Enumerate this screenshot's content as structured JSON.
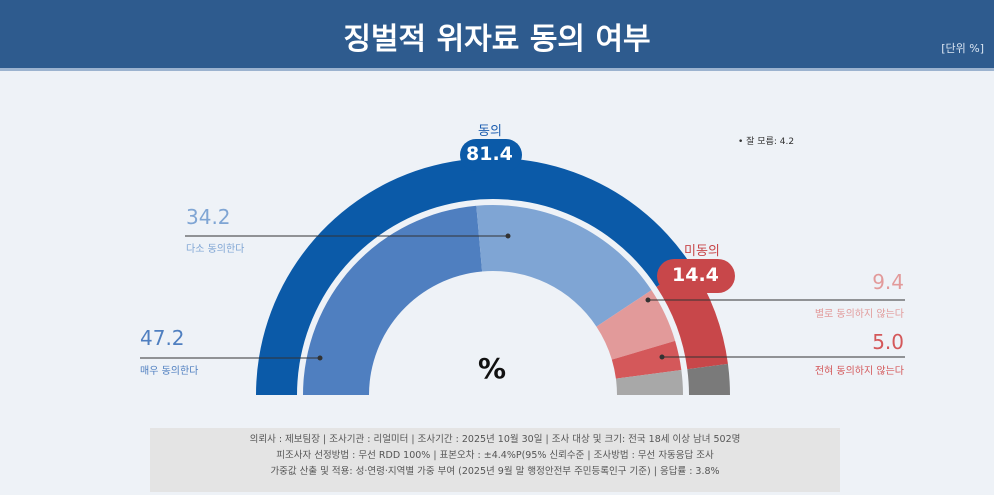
{
  "header": {
    "title": "징벌적 위자료 동의 여부",
    "unit": "[단위 %]"
  },
  "chart_data": {
    "type": "pie",
    "subtype": "semi-donut",
    "center_label": "%",
    "outer": [
      {
        "name": "동의",
        "value": 81.4,
        "color": "#0b5aa8"
      },
      {
        "name": "미동의",
        "value": 14.4,
        "color": "#c8474a"
      },
      {
        "name": "잘 모름",
        "value": 4.2,
        "color": "#7a7a7a"
      }
    ],
    "inner": [
      {
        "name": "매우 동의한다",
        "value": 47.2,
        "color": "#4f7fc0"
      },
      {
        "name": "다소 동의한다",
        "value": 34.2,
        "color": "#7fa5d4"
      },
      {
        "name": "별로 동의하지 않는다",
        "value": 9.4,
        "color": "#e29a9a"
      },
      {
        "name": "전혀 동의하지 않는다",
        "value": 5.0,
        "color": "#d4585a"
      },
      {
        "name": "잘 모름",
        "value": 4.2,
        "color": "#a8a8a8"
      }
    ],
    "dont_know_note": "• 잘 모름: 4.2"
  },
  "labels": {
    "agree_name": "동의",
    "agree_value": "81.4",
    "disagree_name": "미동의",
    "disagree_value": "14.4",
    "strong_agree_value": "47.2",
    "strong_agree_name": "매우 동의한다",
    "some_agree_value": "34.2",
    "some_agree_name": "다소 동의한다",
    "some_disagree_value": "9.4",
    "some_disagree_name": "별로 동의하지 않는다",
    "strong_disagree_value": "5.0",
    "strong_disagree_name": "전혀 동의하지 않는다"
  },
  "footer": [
    "의뢰사 : 제보팀장  | 조사기관 : 리얼미터  | 조사기간 : 2025년 10월 30일 | 조사 대상 및 크기: 전국 18세 이상 남녀 502명",
    "피조사자 선정방법 : 무선 RDD 100% | 표본오차 : ±4.4%P(95% 신뢰수준 | 조사방법 : 무선 자동응답 조사",
    "가중값 산출 및 적용: 성·연령·지역별 가중 부여 (2025년 9월 말 행정안전부 주민등록인구 기준) | 응답률 : 3.8%"
  ]
}
